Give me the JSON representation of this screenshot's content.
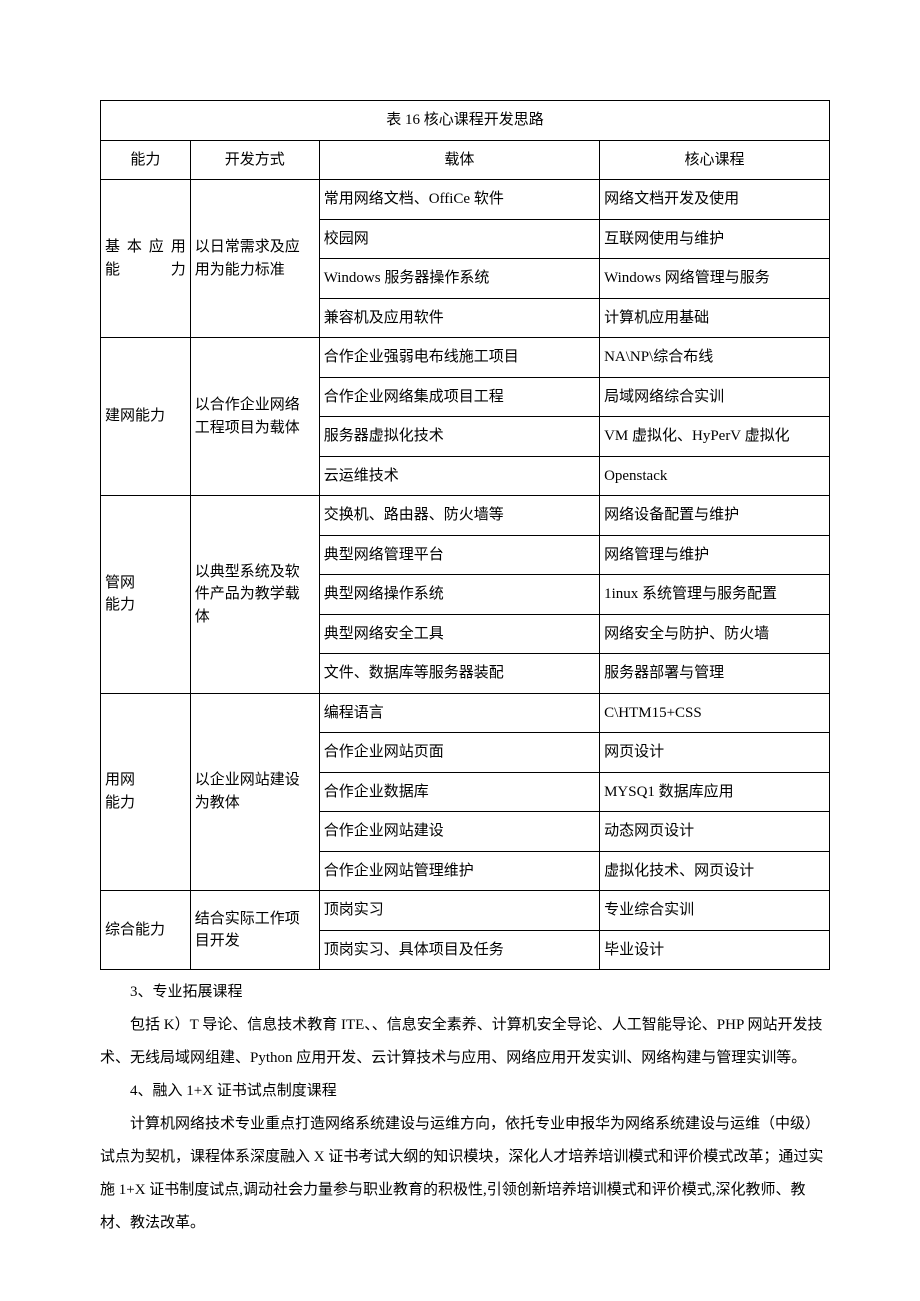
{
  "table": {
    "title": "表 16 核心课程开发思路",
    "headers": [
      "能力",
      "开发方式",
      "载体",
      "核心课程"
    ],
    "groups": [
      {
        "ability": "基 本 应 用能力",
        "method": "以日常需求及应用为能力标准",
        "rows": [
          {
            "carrier": "常用网络文档、OffiCe 软件",
            "course": "网络文档开发及使用"
          },
          {
            "carrier": "校园网",
            "course": "互联网使用与维护"
          },
          {
            "carrier": "Windows 服务器操作系统",
            "course": "Windows 网络管理与服务"
          },
          {
            "carrier": "兼容机及应用软件",
            "course": "计算机应用基础"
          }
        ]
      },
      {
        "ability": "建网能力",
        "method": "以合作企业网络工程项目为载体",
        "rows": [
          {
            "carrier": "合作企业强弱电布线施工项目",
            "course": "NA\\NP\\综合布线"
          },
          {
            "carrier": "合作企业网络集成项目工程",
            "course": "局域网络综合实训"
          },
          {
            "carrier": "服务器虚拟化技术",
            "course": "VM 虚拟化、HyPerV 虚拟化"
          },
          {
            "carrier": "云运维技术",
            "course": "Openstack"
          }
        ]
      },
      {
        "ability": "管网\n能力",
        "method": "以典型系统及软件产品为教学载体",
        "rows": [
          {
            "carrier": "交换机、路由器、防火墙等",
            "course": "网络设备配置与维护"
          },
          {
            "carrier": "典型网络管理平台",
            "course": "网络管理与维护"
          },
          {
            "carrier": "典型网络操作系统",
            "course": "1inux 系统管理与服务配置"
          },
          {
            "carrier": "典型网络安全工具",
            "course": "网络安全与防护、防火墙"
          },
          {
            "carrier": "文件、数据库等服务器装配",
            "course": "服务器部署与管理"
          }
        ]
      },
      {
        "ability": "用网\n能力",
        "method": "以企业网站建设为教体",
        "rows": [
          {
            "carrier": "编程语言",
            "course": "C\\HTM15+CSS"
          },
          {
            "carrier": "合作企业网站页面",
            "course": "网页设计"
          },
          {
            "carrier": "合作企业数据库",
            "course": "MYSQ1 数据库应用"
          },
          {
            "carrier": "合作企业网站建设",
            "course": "动态网页设计"
          },
          {
            "carrier": "合作企业网站管理维护",
            "course": "虚拟化技术、网页设计"
          }
        ]
      },
      {
        "ability": "综合能力",
        "method": "结合实际工作项目开发",
        "rows": [
          {
            "carrier": "顶岗实习",
            "course": "专业综合实训"
          },
          {
            "carrier": "顶岗实习、具体项目及任务",
            "course": "毕业设计"
          }
        ]
      }
    ]
  },
  "paragraphs": [
    "3、专业拓展课程",
    "包括 K）T 导论、信息技术教育 ITE、、信息安全素养、计算机安全导论、人工智能导论、PHP 网站开发技术、无线局域网组建、Python 应用开发、云计算技术与应用、网络应用开发实训、网络构建与管理实训等。",
    "4、融入 1+X 证书试点制度课程",
    "计算机网络技术专业重点打造网络系统建设与运维方向，依托专业申报华为网络系统建设与运维（中级）试点为契机，课程体系深度融入 X 证书考试大纲的知识模块，深化人才培养培训模式和评价模式改革；通过实施 1+X 证书制度试点,调动社会力量参与职业教育的积极性,引领创新培养培训模式和评价模式,深化教师、教材、教法改革。"
  ]
}
